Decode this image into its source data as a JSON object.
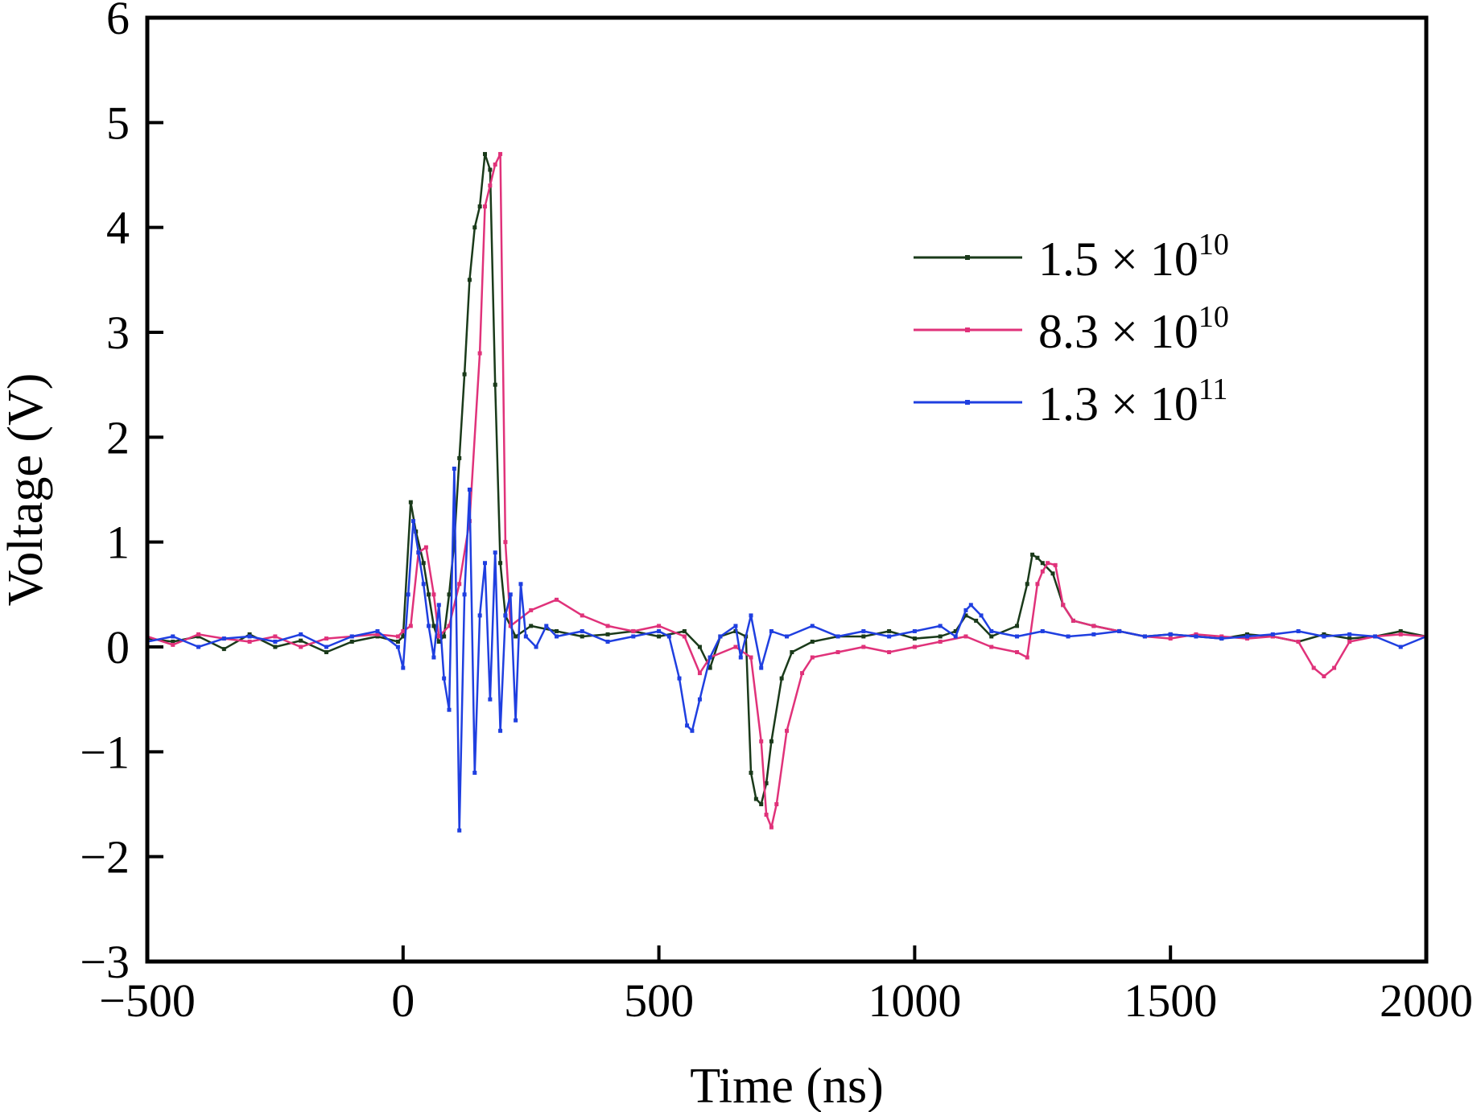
{
  "chart_data": {
    "type": "line",
    "title": "",
    "xlabel": "Time (ns)",
    "ylabel": "Voltage (V)",
    "xlim": [
      -500,
      2000
    ],
    "ylim": [
      -3,
      6
    ],
    "x_ticks": [
      -500,
      0,
      500,
      1000,
      1500,
      2000
    ],
    "y_ticks": [
      -3,
      -2,
      -1,
      0,
      1,
      2,
      3,
      4,
      5,
      6
    ],
    "x_tick_labels": [
      "−500",
      "0",
      "500",
      "1000",
      "1500",
      "2000"
    ],
    "y_tick_labels": [
      "−3",
      "−2",
      "−1",
      "0",
      "1",
      "2",
      "3",
      "4",
      "5",
      "6"
    ],
    "grid": false,
    "legend_position": "top-right",
    "series": [
      {
        "name": "1.5 × 10",
        "name_exponent": "10",
        "color": "#1a3a1a",
        "points": [
          [
            -500,
            0.08
          ],
          [
            -450,
            0.05
          ],
          [
            -400,
            0.1
          ],
          [
            -350,
            -0.02
          ],
          [
            -300,
            0.12
          ],
          [
            -250,
            0.0
          ],
          [
            -200,
            0.06
          ],
          [
            -150,
            -0.05
          ],
          [
            -100,
            0.05
          ],
          [
            -50,
            0.1
          ],
          [
            -10,
            0.05
          ],
          [
            0,
            0.1
          ],
          [
            15,
            1.38
          ],
          [
            25,
            1.1
          ],
          [
            40,
            0.8
          ],
          [
            50,
            0.5
          ],
          [
            60,
            0.2
          ],
          [
            70,
            0.05
          ],
          [
            80,
            0.1
          ],
          [
            90,
            0.5
          ],
          [
            100,
            1.0
          ],
          [
            110,
            1.8
          ],
          [
            120,
            2.6
          ],
          [
            130,
            3.5
          ],
          [
            140,
            4.0
          ],
          [
            150,
            4.2
          ],
          [
            160,
            4.7
          ],
          [
            170,
            4.55
          ],
          [
            180,
            2.5
          ],
          [
            190,
            0.8
          ],
          [
            200,
            0.3
          ],
          [
            220,
            0.1
          ],
          [
            250,
            0.2
          ],
          [
            300,
            0.15
          ],
          [
            350,
            0.1
          ],
          [
            400,
            0.12
          ],
          [
            450,
            0.15
          ],
          [
            500,
            0.1
          ],
          [
            550,
            0.15
          ],
          [
            580,
            0.0
          ],
          [
            600,
            -0.2
          ],
          [
            620,
            0.1
          ],
          [
            650,
            0.15
          ],
          [
            670,
            0.1
          ],
          [
            680,
            -1.2
          ],
          [
            690,
            -1.45
          ],
          [
            700,
            -1.5
          ],
          [
            710,
            -1.3
          ],
          [
            720,
            -0.9
          ],
          [
            740,
            -0.3
          ],
          [
            760,
            -0.05
          ],
          [
            800,
            0.05
          ],
          [
            850,
            0.1
          ],
          [
            900,
            0.1
          ],
          [
            950,
            0.15
          ],
          [
            1000,
            0.08
          ],
          [
            1050,
            0.1
          ],
          [
            1080,
            0.15
          ],
          [
            1100,
            0.3
          ],
          [
            1120,
            0.25
          ],
          [
            1150,
            0.1
          ],
          [
            1200,
            0.2
          ],
          [
            1220,
            0.6
          ],
          [
            1230,
            0.88
          ],
          [
            1240,
            0.85
          ],
          [
            1250,
            0.8
          ],
          [
            1270,
            0.7
          ],
          [
            1290,
            0.4
          ],
          [
            1310,
            0.25
          ],
          [
            1350,
            0.2
          ],
          [
            1400,
            0.15
          ],
          [
            1450,
            0.1
          ],
          [
            1500,
            0.12
          ],
          [
            1550,
            0.1
          ],
          [
            1600,
            0.08
          ],
          [
            1650,
            0.12
          ],
          [
            1700,
            0.1
          ],
          [
            1750,
            0.05
          ],
          [
            1800,
            0.12
          ],
          [
            1850,
            0.08
          ],
          [
            1900,
            0.1
          ],
          [
            1950,
            0.15
          ],
          [
            2000,
            0.1
          ]
        ]
      },
      {
        "name": "8.3 × 10",
        "name_exponent": "10",
        "color": "#e0327a",
        "points": [
          [
            -500,
            0.1
          ],
          [
            -450,
            0.02
          ],
          [
            -400,
            0.12
          ],
          [
            -350,
            0.08
          ],
          [
            -300,
            0.05
          ],
          [
            -250,
            0.1
          ],
          [
            -200,
            0.0
          ],
          [
            -150,
            0.08
          ],
          [
            -100,
            0.1
          ],
          [
            -50,
            0.12
          ],
          [
            -10,
            0.1
          ],
          [
            0,
            0.15
          ],
          [
            15,
            0.2
          ],
          [
            30,
            0.9
          ],
          [
            45,
            0.95
          ],
          [
            60,
            0.5
          ],
          [
            70,
            0.1
          ],
          [
            90,
            0.2
          ],
          [
            110,
            0.6
          ],
          [
            130,
            1.2
          ],
          [
            150,
            2.8
          ],
          [
            160,
            4.2
          ],
          [
            170,
            4.4
          ],
          [
            180,
            4.6
          ],
          [
            190,
            4.7
          ],
          [
            200,
            1.0
          ],
          [
            210,
            0.2
          ],
          [
            250,
            0.35
          ],
          [
            300,
            0.45
          ],
          [
            350,
            0.3
          ],
          [
            400,
            0.2
          ],
          [
            450,
            0.15
          ],
          [
            500,
            0.2
          ],
          [
            550,
            0.1
          ],
          [
            580,
            -0.25
          ],
          [
            600,
            -0.1
          ],
          [
            650,
            0.0
          ],
          [
            680,
            -0.1
          ],
          [
            700,
            -0.9
          ],
          [
            710,
            -1.6
          ],
          [
            720,
            -1.72
          ],
          [
            730,
            -1.5
          ],
          [
            750,
            -0.8
          ],
          [
            780,
            -0.25
          ],
          [
            800,
            -0.1
          ],
          [
            850,
            -0.05
          ],
          [
            900,
            0.0
          ],
          [
            950,
            -0.05
          ],
          [
            1000,
            0.0
          ],
          [
            1050,
            0.05
          ],
          [
            1100,
            0.1
          ],
          [
            1150,
            0.0
          ],
          [
            1200,
            -0.05
          ],
          [
            1220,
            -0.1
          ],
          [
            1240,
            0.6
          ],
          [
            1250,
            0.72
          ],
          [
            1260,
            0.8
          ],
          [
            1275,
            0.78
          ],
          [
            1290,
            0.4
          ],
          [
            1310,
            0.25
          ],
          [
            1350,
            0.2
          ],
          [
            1400,
            0.15
          ],
          [
            1450,
            0.1
          ],
          [
            1500,
            0.08
          ],
          [
            1550,
            0.12
          ],
          [
            1600,
            0.1
          ],
          [
            1650,
            0.08
          ],
          [
            1700,
            0.1
          ],
          [
            1750,
            0.05
          ],
          [
            1780,
            -0.2
          ],
          [
            1800,
            -0.28
          ],
          [
            1820,
            -0.2
          ],
          [
            1850,
            0.05
          ],
          [
            1900,
            0.1
          ],
          [
            1950,
            0.12
          ],
          [
            2000,
            0.1
          ]
        ]
      },
      {
        "name": "1.3 × 10",
        "name_exponent": "11",
        "color": "#1f3fe0",
        "points": [
          [
            -500,
            0.05
          ],
          [
            -450,
            0.1
          ],
          [
            -400,
            0.0
          ],
          [
            -350,
            0.08
          ],
          [
            -300,
            0.1
          ],
          [
            -250,
            0.05
          ],
          [
            -200,
            0.12
          ],
          [
            -150,
            0.0
          ],
          [
            -100,
            0.1
          ],
          [
            -50,
            0.15
          ],
          [
            -10,
            0.0
          ],
          [
            0,
            -0.2
          ],
          [
            10,
            0.5
          ],
          [
            20,
            1.2
          ],
          [
            30,
            0.9
          ],
          [
            40,
            0.6
          ],
          [
            50,
            0.2
          ],
          [
            60,
            -0.1
          ],
          [
            70,
            0.4
          ],
          [
            80,
            -0.3
          ],
          [
            90,
            -0.6
          ],
          [
            100,
            1.7
          ],
          [
            110,
            -1.75
          ],
          [
            120,
            0.5
          ],
          [
            130,
            1.5
          ],
          [
            140,
            -1.2
          ],
          [
            150,
            0.3
          ],
          [
            160,
            0.8
          ],
          [
            170,
            -0.5
          ],
          [
            180,
            0.9
          ],
          [
            190,
            -0.8
          ],
          [
            200,
            0.3
          ],
          [
            210,
            0.5
          ],
          [
            220,
            -0.7
          ],
          [
            230,
            0.6
          ],
          [
            240,
            0.1
          ],
          [
            260,
            0.0
          ],
          [
            280,
            0.2
          ],
          [
            300,
            0.1
          ],
          [
            350,
            0.15
          ],
          [
            400,
            0.05
          ],
          [
            450,
            0.1
          ],
          [
            500,
            0.15
          ],
          [
            520,
            0.1
          ],
          [
            540,
            -0.3
          ],
          [
            555,
            -0.75
          ],
          [
            565,
            -0.8
          ],
          [
            580,
            -0.5
          ],
          [
            600,
            -0.1
          ],
          [
            620,
            0.1
          ],
          [
            650,
            0.2
          ],
          [
            660,
            -0.1
          ],
          [
            680,
            0.3
          ],
          [
            700,
            -0.2
          ],
          [
            720,
            0.15
          ],
          [
            750,
            0.1
          ],
          [
            800,
            0.2
          ],
          [
            850,
            0.1
          ],
          [
            900,
            0.15
          ],
          [
            950,
            0.1
          ],
          [
            1000,
            0.15
          ],
          [
            1050,
            0.2
          ],
          [
            1080,
            0.1
          ],
          [
            1100,
            0.35
          ],
          [
            1110,
            0.4
          ],
          [
            1130,
            0.3
          ],
          [
            1150,
            0.15
          ],
          [
            1200,
            0.1
          ],
          [
            1250,
            0.15
          ],
          [
            1300,
            0.1
          ],
          [
            1350,
            0.12
          ],
          [
            1400,
            0.15
          ],
          [
            1450,
            0.1
          ],
          [
            1500,
            0.12
          ],
          [
            1550,
            0.1
          ],
          [
            1600,
            0.08
          ],
          [
            1650,
            0.1
          ],
          [
            1700,
            0.12
          ],
          [
            1750,
            0.15
          ],
          [
            1800,
            0.1
          ],
          [
            1850,
            0.12
          ],
          [
            1900,
            0.1
          ],
          [
            1950,
            0.0
          ],
          [
            2000,
            0.1
          ]
        ]
      }
    ]
  }
}
